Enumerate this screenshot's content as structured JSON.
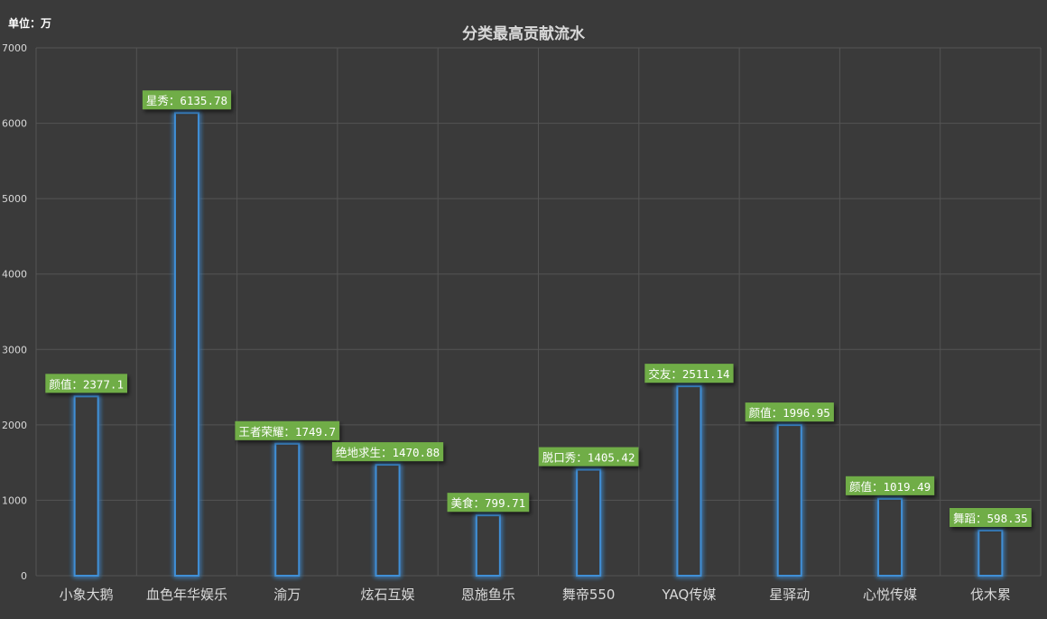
{
  "unit_label": "单位：万",
  "chart_data": {
    "type": "bar",
    "title": "分类最高贡献流水",
    "xlabel": "",
    "ylabel": "",
    "ylim": [
      0,
      7000
    ],
    "yticks": [
      0,
      1000,
      2000,
      3000,
      4000,
      5000,
      6000,
      7000
    ],
    "grid": true,
    "legend": "none",
    "categories": [
      "小象大鹅",
      "血色年华娱乐",
      "渝万",
      "炫石互娱",
      "恩施鱼乐",
      "舞帝550",
      "YAQ传媒",
      "星驿动",
      "心悦传媒",
      "伐木累"
    ],
    "values": [
      2377.1,
      6135.78,
      1749.7,
      1470.88,
      799.71,
      1405.42,
      2511.14,
      1996.95,
      1019.49,
      598.35
    ],
    "data_labels": [
      "颜值：2377.1",
      "星秀：6135.78",
      "王者荣耀：1749.7",
      "绝地求生：1470.88",
      "美食：799.71",
      "脱口秀：1405.42",
      "交友：2511.14",
      "颜值：1996.95",
      "颜值：1019.49",
      "舞蹈：598.35"
    ],
    "colors": {
      "background": "#3a3a3a",
      "bar_stroke": "#3f8fd6",
      "bar_glow": "#2b7fd0",
      "label_bg": "#70ad47",
      "grid": "#545454",
      "axis_text": "#d9d9d9",
      "title": "#d9d9d9"
    }
  }
}
